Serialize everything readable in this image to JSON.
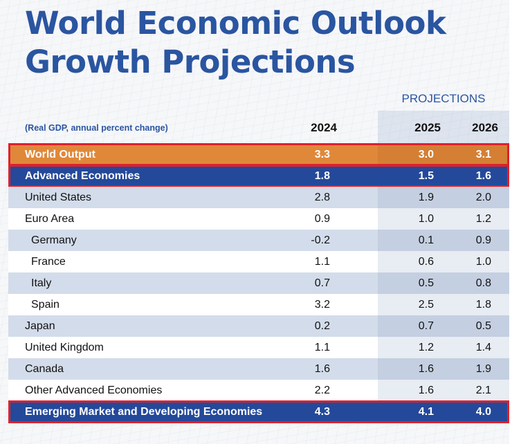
{
  "title_line1": "World Economic Outlook",
  "title_line2": "Growth Projections",
  "projections_label": "PROJECTIONS",
  "subtitle": "(Real GDP, annual percent change)",
  "years": [
    "2024",
    "2025",
    "2026"
  ],
  "rows": [
    {
      "name": "World Output",
      "values": [
        "3.3",
        "3.0",
        "3.1"
      ],
      "style": "world",
      "highlighted": true
    },
    {
      "name": "Advanced Economies",
      "values": [
        "1.8",
        "1.5",
        "1.6"
      ],
      "style": "adv",
      "highlighted": true
    },
    {
      "name": "United States",
      "values": [
        "2.8",
        "1.9",
        "2.0"
      ],
      "style": "alt"
    },
    {
      "name": "Euro Area",
      "values": [
        "0.9",
        "1.0",
        "1.2"
      ],
      "style": "plain"
    },
    {
      "name": "Germany",
      "values": [
        "-0.2",
        "0.1",
        "0.9"
      ],
      "style": "alt",
      "indent": true
    },
    {
      "name": "France",
      "values": [
        "1.1",
        "0.6",
        "1.0"
      ],
      "style": "plain",
      "indent": true
    },
    {
      "name": "Italy",
      "values": [
        "0.7",
        "0.5",
        "0.8"
      ],
      "style": "alt",
      "indent": true
    },
    {
      "name": "Spain",
      "values": [
        "3.2",
        "2.5",
        "1.8"
      ],
      "style": "plain",
      "indent": true
    },
    {
      "name": "Japan",
      "values": [
        "0.2",
        "0.7",
        "0.5"
      ],
      "style": "alt"
    },
    {
      "name": "United Kingdom",
      "values": [
        "1.1",
        "1.2",
        "1.4"
      ],
      "style": "plain"
    },
    {
      "name": "Canada",
      "values": [
        "1.6",
        "1.6",
        "1.9"
      ],
      "style": "alt"
    },
    {
      "name": "Other Advanced Economies",
      "values": [
        "2.2",
        "1.6",
        "2.1"
      ],
      "style": "plain"
    },
    {
      "name": "Emerging Market and Developing Economies",
      "values": [
        "4.3",
        "4.1",
        "4.0"
      ],
      "style": "emg",
      "highlighted": true
    }
  ],
  "colors": {
    "title": "#2a55a0",
    "world_row": "#e0883a",
    "economies_row": "#24499a",
    "highlight_border": "#e0202a",
    "alt_row": "#d3dcea"
  }
}
